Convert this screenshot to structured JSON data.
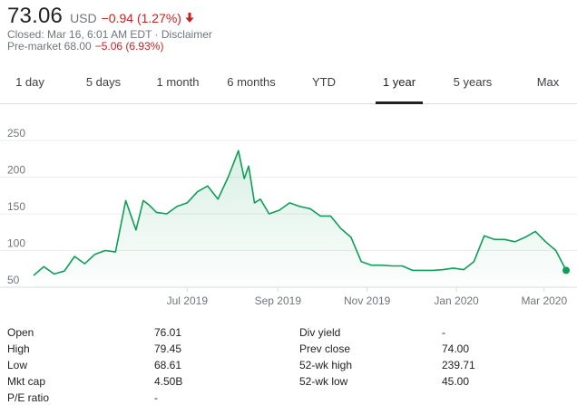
{
  "quote": {
    "price": "73.06",
    "currency": "USD",
    "change": "−0.94 (1.27%)",
    "change_color": "#c5221f",
    "arrow_icon": "down-arrow-icon",
    "closed_text": "Closed: Mar 16, 6:01 AM EDT",
    "separator": " · ",
    "disclaimer": "Disclaimer",
    "premarket_label": "Pre-market 68.00",
    "premarket_change": "−5.06 (6.93%)"
  },
  "tabs": [
    {
      "label": "1 day"
    },
    {
      "label": "5 days"
    },
    {
      "label": "1 month"
    },
    {
      "label": "6 months"
    },
    {
      "label": "YTD"
    },
    {
      "label": "1 year",
      "active": true
    },
    {
      "label": "5 years"
    },
    {
      "label": "Max"
    }
  ],
  "chart_data": {
    "type": "area",
    "title": "",
    "xlabel": "",
    "ylabel": "",
    "ylim": [
      50,
      250
    ],
    "y_ticks": [
      "250",
      "200",
      "150",
      "100",
      "50"
    ],
    "x_ticks": [
      "Jul 2019",
      "Sep 2019",
      "Nov 2019",
      "Jan 2020",
      "Mar 2020"
    ],
    "x_range": [
      "2019-03-18",
      "2020-03-16"
    ],
    "grid": true,
    "line_color": "#0f9d58",
    "x": [
      "2019-03-18",
      "2019-03-25",
      "2019-04-01",
      "2019-04-08",
      "2019-04-15",
      "2019-04-22",
      "2019-04-29",
      "2019-05-06",
      "2019-05-13",
      "2019-05-20",
      "2019-05-27",
      "2019-06-01",
      "2019-06-05",
      "2019-06-10",
      "2019-06-17",
      "2019-06-24",
      "2019-07-01",
      "2019-07-08",
      "2019-07-15",
      "2019-07-22",
      "2019-07-29",
      "2019-08-05",
      "2019-08-09",
      "2019-08-12",
      "2019-08-16",
      "2019-08-20",
      "2019-08-26",
      "2019-09-02",
      "2019-09-09",
      "2019-09-16",
      "2019-09-23",
      "2019-09-30",
      "2019-10-07",
      "2019-10-14",
      "2019-10-21",
      "2019-10-28",
      "2019-11-04",
      "2019-11-11",
      "2019-11-18",
      "2019-11-25",
      "2019-12-02",
      "2019-12-09",
      "2019-12-16",
      "2019-12-23",
      "2019-12-30",
      "2020-01-06",
      "2020-01-13",
      "2020-01-20",
      "2020-01-27",
      "2020-02-03",
      "2020-02-10",
      "2020-02-17",
      "2020-02-24",
      "2020-03-02",
      "2020-03-09",
      "2020-03-16"
    ],
    "series": [
      {
        "name": "",
        "values": [
          66,
          78,
          68,
          72,
          92,
          82,
          95,
          100,
          98,
          168,
          128,
          168,
          162,
          152,
          150,
          160,
          165,
          180,
          188,
          170,
          200,
          236,
          198,
          215,
          165,
          170,
          150,
          155,
          165,
          160,
          157,
          147,
          147,
          130,
          118,
          85,
          80,
          80,
          79,
          79,
          73,
          73,
          73,
          74,
          76,
          74,
          85,
          120,
          115,
          115,
          112,
          118,
          126,
          112,
          100,
          73
        ]
      }
    ]
  },
  "stats": {
    "left": [
      {
        "label": "Open",
        "value": "76.01"
      },
      {
        "label": "High",
        "value": "79.45"
      },
      {
        "label": "Low",
        "value": "68.61"
      },
      {
        "label": "Mkt cap",
        "value": "4.50B"
      },
      {
        "label": "P/E ratio",
        "value": "-"
      }
    ],
    "right": [
      {
        "label": "Div yield",
        "value": "-"
      },
      {
        "label": "Prev close",
        "value": "74.00"
      },
      {
        "label": "52-wk high",
        "value": "239.71"
      },
      {
        "label": "52-wk low",
        "value": "45.00"
      }
    ]
  }
}
